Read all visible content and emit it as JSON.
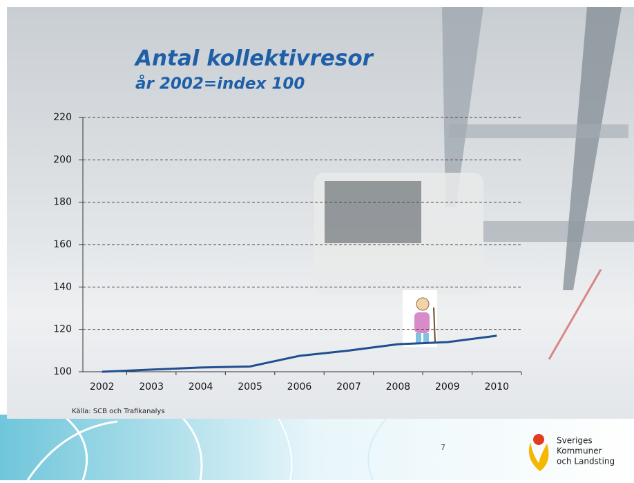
{
  "chart_data": {
    "type": "line",
    "title": "Antal kollektivresor",
    "subtitle": "år 2002=index 100",
    "categories": [
      "2002",
      "2003",
      "2004",
      "2005",
      "2006",
      "2007",
      "2008",
      "2009",
      "2010"
    ],
    "values": [
      100,
      101,
      102,
      102.5,
      107.5,
      110,
      113,
      114,
      117
    ],
    "color": "#1f4f8f",
    "ylim": [
      100,
      220
    ],
    "yticks": [
      100,
      120,
      140,
      160,
      180,
      200,
      220
    ],
    "grid": true,
    "source": "Källa: SCB och Trafikanalys"
  },
  "slide": {
    "page_number": "7",
    "logo": [
      "Sveriges",
      "Kommuner",
      "och Landsting"
    ]
  }
}
